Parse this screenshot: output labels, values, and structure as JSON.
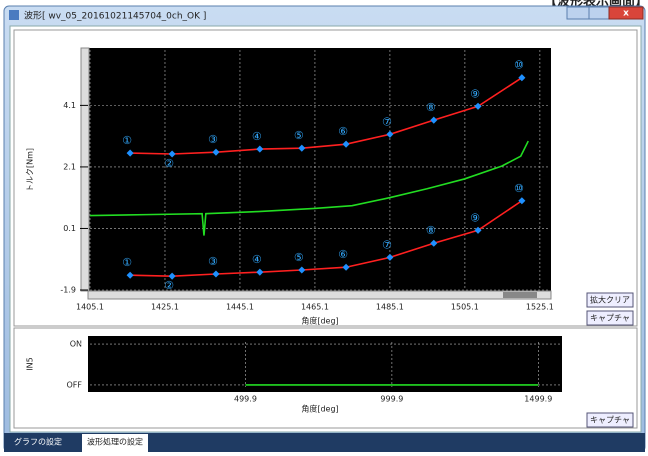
{
  "page_header": "【波形表示画面】",
  "window": {
    "title": "波形[ wv_05_20161021145704_0ch_OK ]"
  },
  "buttons": {
    "zoom_clear": "拡大クリア",
    "capture_top": "キャプチャ",
    "capture_bottom": "キャプチャ"
  },
  "tabs": [
    "グラフの設定",
    "波形処理の設定"
  ],
  "chart_data": [
    {
      "type": "line",
      "y_label": "トルク[Nm]",
      "x_label": "角度[deg]",
      "xlim": [
        1405.1,
        1527.8
      ],
      "ylim": [
        -1.9,
        5.9
      ],
      "xticks": [
        1405.1,
        1425.1,
        1445.1,
        1465.1,
        1485.1,
        1505.1,
        1525.1
      ],
      "yticks": [
        -1.9,
        0.1,
        2.1,
        4.1
      ],
      "grid": true,
      "series": [
        {
          "color": "#ff2020",
          "marker_color": "#1e90ff",
          "x": [
            1415.8,
            1427,
            1438.7,
            1450.4,
            1461.6,
            1473.4,
            1485.1,
            1496.8,
            1508.6,
            1520.3
          ],
          "values": [
            2.55,
            2.52,
            2.58,
            2.68,
            2.71,
            2.84,
            3.16,
            3.62,
            4.07,
            5.0
          ],
          "point_labels": [
            "①",
            "②",
            "③",
            "④",
            "⑤",
            "⑥",
            "⑦",
            "⑧",
            "⑨",
            "⑩"
          ]
        },
        {
          "color": "#22dd22",
          "x": [
            1405.1,
            1420,
            1435,
            1435.5,
            1436,
            1450,
            1465,
            1475,
            1485,
            1495,
            1505,
            1515,
            1520,
            1522
          ],
          "values": [
            0.52,
            0.55,
            0.58,
            -0.13,
            0.58,
            0.65,
            0.75,
            0.84,
            1.1,
            1.39,
            1.71,
            2.13,
            2.45,
            2.94
          ]
        },
        {
          "color": "#ff2020",
          "marker_color": "#1e90ff",
          "x": [
            1415.8,
            1427,
            1438.7,
            1450.4,
            1461.6,
            1473.4,
            1485.1,
            1496.8,
            1508.6,
            1520.3
          ],
          "values": [
            -1.42,
            -1.45,
            -1.38,
            -1.32,
            -1.25,
            -1.16,
            -0.84,
            -0.38,
            0.04,
            1.0
          ],
          "point_labels": [
            "①",
            "②",
            "③",
            "④",
            "⑤",
            "⑥",
            "⑦",
            "⑧",
            "⑨",
            "⑩"
          ]
        }
      ]
    },
    {
      "type": "line",
      "y_label": "IN5",
      "x_label": "角度[deg]",
      "xlim": [
        -31,
        1574
      ],
      "ylim": [
        -0.05,
        1.05
      ],
      "xticks": [
        499.9,
        999.9,
        1499.9
      ],
      "yticks": [
        {
          "value": 1,
          "label": "ON"
        },
        {
          "value": 0,
          "label": "OFF"
        }
      ],
      "grid": true,
      "series": [
        {
          "color": "#22dd22",
          "x": [
            499.9,
            1499.9
          ],
          "values": [
            0,
            0
          ]
        }
      ]
    }
  ]
}
